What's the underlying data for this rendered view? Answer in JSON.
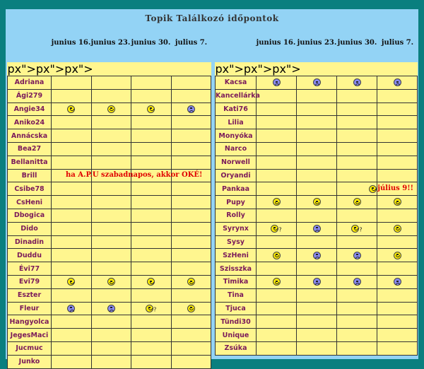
{
  "title": "Topik Találkozó időpontok",
  "dates": [
    "junius 16.",
    "junius 23.",
    "junius 30.",
    "julius 7."
  ],
  "colors": {
    "background": "#0a7f7f",
    "panel": "#93d3f5",
    "cell": "#fff68f",
    "name": "#7a1a5a",
    "note": "#e00000"
  },
  "left": [
    {
      "name": "Adriana",
      "c": [
        "",
        "",
        "",
        ""
      ]
    },
    {
      "name": "Ági279",
      "c": [
        "",
        "",
        "",
        ""
      ]
    },
    {
      "name": "Angie34",
      "c": [
        "happy",
        "happy",
        "happy",
        "sad"
      ]
    },
    {
      "name": "Aniko24",
      "c": [
        "",
        "",
        "",
        ""
      ]
    },
    {
      "name": "Annácska",
      "c": [
        "",
        "",
        "",
        ""
      ]
    },
    {
      "name": "Bea27",
      "c": [
        "",
        "",
        "",
        ""
      ]
    },
    {
      "name": "Bellanitta",
      "c": [
        "",
        "",
        "",
        ""
      ]
    },
    {
      "name": "Brill",
      "c": [
        "",
        "",
        "",
        ""
      ],
      "note": "ha A.P.U szabadnapos, akkor OKÉ!"
    },
    {
      "name": "Csibe78",
      "c": [
        "",
        "",
        "",
        ""
      ]
    },
    {
      "name": "CsHeni",
      "c": [
        "",
        "",
        "",
        ""
      ]
    },
    {
      "name": "Dbogica",
      "c": [
        "",
        "",
        "",
        ""
      ]
    },
    {
      "name": "Dido",
      "c": [
        "",
        "",
        "",
        ""
      ]
    },
    {
      "name": "Dinadin",
      "c": [
        "",
        "",
        "",
        ""
      ]
    },
    {
      "name": "Duddu",
      "c": [
        "",
        "",
        "",
        ""
      ]
    },
    {
      "name": "Évi77",
      "c": [
        "",
        "",
        "",
        ""
      ]
    },
    {
      "name": "Evi79",
      "c": [
        "happy",
        "happy",
        "happy",
        "happy"
      ]
    },
    {
      "name": "Eszter",
      "c": [
        "",
        "",
        "",
        ""
      ]
    },
    {
      "name": "Fleur",
      "c": [
        "sad",
        "sad",
        "happy?",
        "happy"
      ]
    },
    {
      "name": "Hangyolca",
      "c": [
        "",
        "",
        "",
        ""
      ]
    },
    {
      "name": "JegesMaci",
      "c": [
        "",
        "",
        "",
        ""
      ]
    },
    {
      "name": "Jucmuc",
      "c": [
        "",
        "",
        "",
        ""
      ]
    },
    {
      "name": "Junko",
      "c": [
        "",
        "",
        "",
        ""
      ]
    }
  ],
  "right": [
    {
      "name": "Kacsa",
      "c": [
        "sad",
        "sad",
        "sad",
        "sad"
      ]
    },
    {
      "name": "Kancellárka",
      "c": [
        "",
        "",
        "",
        ""
      ]
    },
    {
      "name": "Kati76",
      "c": [
        "",
        "",
        "",
        ""
      ]
    },
    {
      "name": "Lilia",
      "c": [
        "",
        "",
        "",
        ""
      ]
    },
    {
      "name": "Monyóka",
      "c": [
        "",
        "",
        "",
        ""
      ]
    },
    {
      "name": "Narco",
      "c": [
        "",
        "",
        "",
        ""
      ]
    },
    {
      "name": "Norwell",
      "c": [
        "",
        "",
        "",
        ""
      ]
    },
    {
      "name": "Oryandi",
      "c": [
        "",
        "",
        "",
        ""
      ]
    },
    {
      "name": "Pankaa",
      "c": [
        "",
        "",
        "",
        ""
      ],
      "note": "július 9!!"
    },
    {
      "name": "Pupy",
      "c": [
        "happy",
        "happy",
        "happy",
        "happy"
      ]
    },
    {
      "name": "Rolly",
      "c": [
        "",
        "",
        "",
        ""
      ]
    },
    {
      "name": "Syrynx",
      "c": [
        "happy?",
        "sad",
        "happy?",
        "happy"
      ]
    },
    {
      "name": "Sysy",
      "c": [
        "",
        "",
        "",
        ""
      ]
    },
    {
      "name": "SzHeni",
      "c": [
        "happy",
        "sad",
        "sad",
        "happy"
      ]
    },
    {
      "name": "Szisszka",
      "c": [
        "",
        "",
        "",
        ""
      ]
    },
    {
      "name": "Timika",
      "c": [
        "happy",
        "sad",
        "sad",
        "sad"
      ]
    },
    {
      "name": "Tina",
      "c": [
        "",
        "",
        "",
        ""
      ]
    },
    {
      "name": "Tjuca",
      "c": [
        "",
        "",
        "",
        ""
      ]
    },
    {
      "name": "Tündi30",
      "c": [
        "",
        "",
        "",
        ""
      ]
    },
    {
      "name": "Unique",
      "c": [
        "",
        "",
        "",
        ""
      ]
    },
    {
      "name": "Zsúka",
      "c": [
        "",
        "",
        "",
        ""
      ]
    }
  ]
}
